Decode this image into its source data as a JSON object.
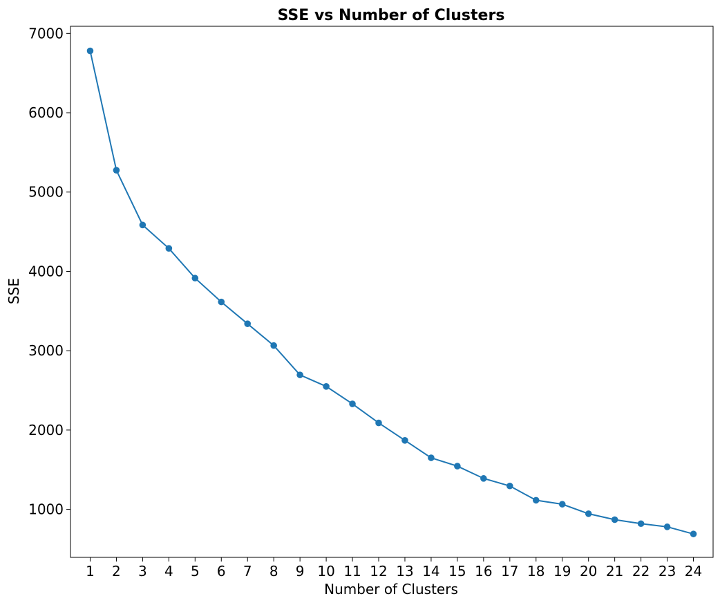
{
  "chart_data": {
    "type": "line",
    "title": "SSE vs Number of Clusters",
    "xlabel": "Number of Clusters",
    "ylabel": "SSE",
    "x": [
      1,
      2,
      3,
      4,
      5,
      6,
      7,
      8,
      9,
      10,
      11,
      12,
      13,
      14,
      15,
      16,
      17,
      18,
      19,
      20,
      21,
      22,
      23,
      24
    ],
    "series": [
      {
        "values": [
          6780,
          5275,
          4585,
          4290,
          3915,
          3615,
          3340,
          3065,
          2695,
          2550,
          2330,
          2090,
          1870,
          1650,
          1545,
          1390,
          1295,
          1115,
          1065,
          945,
          870,
          820,
          780,
          690
        ],
        "color": "#1f77b4",
        "marker": "circle"
      }
    ],
    "xticks": [
      1,
      2,
      3,
      4,
      5,
      6,
      7,
      8,
      9,
      10,
      11,
      12,
      13,
      14,
      15,
      16,
      17,
      18,
      19,
      20,
      21,
      22,
      23,
      24
    ],
    "yticks": [
      1000,
      2000,
      3000,
      4000,
      5000,
      6000,
      7000
    ],
    "xlim": [
      0.25,
      24.75
    ],
    "ylim": [
      395,
      7090
    ],
    "grid": false,
    "legend": "none"
  }
}
